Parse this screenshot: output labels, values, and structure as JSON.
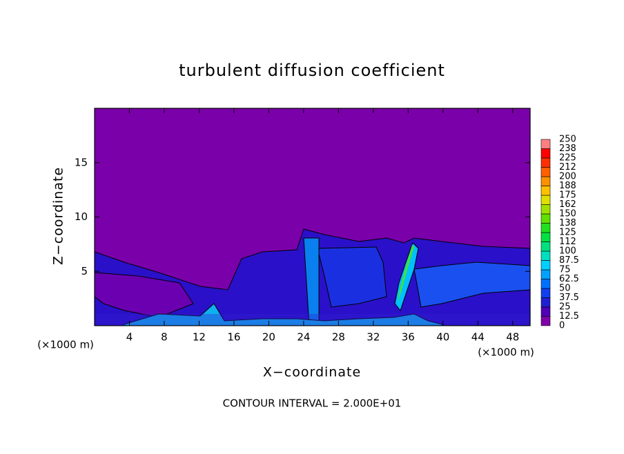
{
  "chart_data": {
    "type": "contour",
    "title": "turbulent diffusion coefficient",
    "x_label": "X−coordinate",
    "y_label": "Z−coordinate",
    "x_unit_left": "(×1000 m)",
    "x_unit_right": "(×1000 m)",
    "footnote": "CONTOUR INTERVAL = 2.000E+01",
    "xlim": [
      0,
      50
    ],
    "xticks": [
      4,
      8,
      12,
      16,
      20,
      24,
      28,
      32,
      36,
      40,
      44,
      48
    ],
    "ylim": [
      0,
      20
    ],
    "yticks": [
      5,
      10,
      15
    ],
    "colorbar": {
      "levels": [
        0,
        12.5,
        25,
        37.5,
        50,
        62.5,
        75,
        87.5,
        100,
        112,
        125,
        138,
        150,
        162,
        175,
        188,
        200,
        212,
        225,
        238,
        250
      ],
      "colors": [
        "#8000a8",
        "#5000b8",
        "#2020d0",
        "#1040f0",
        "#0070ff",
        "#00a0ff",
        "#00d0ff",
        "#00e0c0",
        "#00e080",
        "#00e040",
        "#20e020",
        "#60e000",
        "#a0e000",
        "#e0e000",
        "#ffc000",
        "#ff9000",
        "#ff6000",
        "#ff3000",
        "#ff0000",
        "#ff8080"
      ]
    }
  }
}
